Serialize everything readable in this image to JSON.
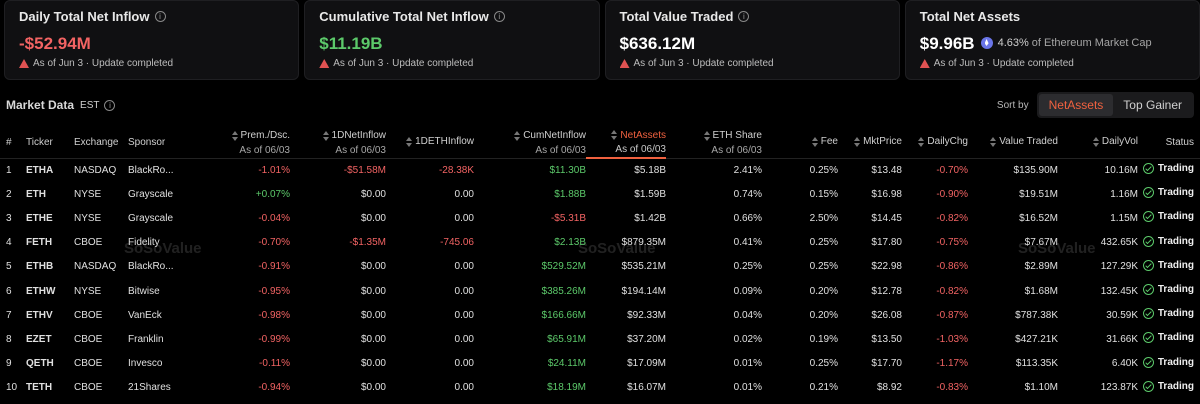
{
  "cards": [
    {
      "title": "Daily Total Net Inflow",
      "value": "-$52.94M",
      "tone": "neg",
      "status": "As of Jun 3 · Update completed"
    },
    {
      "title": "Cumulative Total Net Inflow",
      "value": "$11.19B",
      "tone": "pos",
      "status": "As of Jun 3 · Update completed"
    },
    {
      "title": "Total Value Traded",
      "value": "$636.12M",
      "tone": "neu",
      "status": "As of Jun 3 · Update completed"
    },
    {
      "title": "Total Net Assets",
      "value": "$9.96B",
      "tone": "neu",
      "extra_pct": "4.63%",
      "extra_text": "of Ethereum Market Cap",
      "status": "As of Jun 3 · Update completed"
    }
  ],
  "market": {
    "title": "Market Data",
    "timezone": "EST",
    "sort_label": "Sort by",
    "sort_options": [
      "NetAssets",
      "Top Gainer"
    ]
  },
  "watermark": "SoSoValue",
  "table": {
    "headers": {
      "num": "#",
      "ticker": "Ticker",
      "exchange": "Exchange",
      "sponsor": "Sponsor",
      "prem": "Prem./Dsc.",
      "prem_sub": "As of 06/03",
      "d1net": "1DNetInflow",
      "d1net_sub": "As of 06/03",
      "d1eth": "1DETHInflow",
      "cumnet": "CumNetInflow",
      "cumnet_sub": "As of 06/03",
      "netassets": "NetAssets",
      "netassets_sub": "As of 06/03",
      "ethshare": "ETH Share",
      "ethshare_sub": "As of 06/03",
      "fee": "Fee",
      "mktprice": "MktPrice",
      "dailychg": "DailyChg",
      "valtraded": "Value Traded",
      "dailyvol": "DailyVol",
      "status": "Status"
    },
    "rows": [
      {
        "num": "1",
        "ticker": "ETHA",
        "exchange": "NASDAQ",
        "sponsor": "BlackRo...",
        "prem": "-1.01%",
        "d1net": "-$51.58M",
        "d1eth": "-28.38K",
        "cumnet": "$11.30B",
        "netassets": "$5.18B",
        "ethshare": "2.41%",
        "fee": "0.25%",
        "fee2": "0.25%",
        "mktprice": "$13.48",
        "dailychg": "-0.70%",
        "valtraded": "$135.90M",
        "dailyvol": "10.16M",
        "status": "Trading"
      },
      {
        "num": "2",
        "ticker": "ETH",
        "exchange": "NYSE",
        "sponsor": "Grayscale",
        "prem": "+0.07%",
        "d1net": "$0.00",
        "d1eth": "0.00",
        "cumnet": "$1.88B",
        "netassets": "$1.59B",
        "ethshare": "0.74%",
        "fee": "0.15%",
        "fee2": "0.15%",
        "mktprice": "$16.98",
        "dailychg": "-0.90%",
        "valtraded": "$19.51M",
        "dailyvol": "1.16M",
        "status": "Trading"
      },
      {
        "num": "3",
        "ticker": "ETHE",
        "exchange": "NYSE",
        "sponsor": "Grayscale",
        "prem": "-0.04%",
        "d1net": "$0.00",
        "d1eth": "0.00",
        "cumnet": "-$5.31B",
        "netassets": "$1.42B",
        "ethshare": "0.66%",
        "fee": "2.50%",
        "fee2": "2.50%",
        "mktprice": "$14.45",
        "dailychg": "-0.82%",
        "valtraded": "$16.52M",
        "dailyvol": "1.15M",
        "status": "Trading"
      },
      {
        "num": "4",
        "ticker": "FETH",
        "exchange": "CBOE",
        "sponsor": "Fidelity",
        "prem": "-0.70%",
        "d1net": "-$1.35M",
        "d1eth": "-745.06",
        "cumnet": "$2.13B",
        "netassets": "$879.35M",
        "ethshare": "0.41%",
        "fee": "0.25%",
        "fee2": "0.25%",
        "mktprice": "$17.80",
        "dailychg": "-0.75%",
        "valtraded": "$7.67M",
        "dailyvol": "432.65K",
        "status": "Trading"
      },
      {
        "num": "5",
        "ticker": "ETHB",
        "exchange": "NASDAQ",
        "sponsor": "BlackRo...",
        "prem": "-0.91%",
        "d1net": "$0.00",
        "d1eth": "0.00",
        "cumnet": "$529.52M",
        "netassets": "$535.21M",
        "ethshare": "0.25%",
        "fee": "0.25%",
        "fee2": "0.25%",
        "mktprice": "$22.98",
        "dailychg": "-0.86%",
        "valtraded": "$2.89M",
        "dailyvol": "127.29K",
        "status": "Trading"
      },
      {
        "num": "6",
        "ticker": "ETHW",
        "exchange": "NYSE",
        "sponsor": "Bitwise",
        "prem": "-0.95%",
        "d1net": "$0.00",
        "d1eth": "0.00",
        "cumnet": "$385.26M",
        "netassets": "$194.14M",
        "ethshare": "0.09%",
        "fee": "0.20%",
        "fee2": "0.20%",
        "mktprice": "$12.78",
        "dailychg": "-0.82%",
        "valtraded": "$1.68M",
        "dailyvol": "132.45K",
        "status": "Trading"
      },
      {
        "num": "7",
        "ticker": "ETHV",
        "exchange": "CBOE",
        "sponsor": "VanEck",
        "prem": "-0.98%",
        "d1net": "$0.00",
        "d1eth": "0.00",
        "cumnet": "$166.66M",
        "netassets": "$92.33M",
        "ethshare": "0.04%",
        "fee": "0.20%",
        "fee2": "0.20%",
        "mktprice": "$26.08",
        "dailychg": "-0.87%",
        "valtraded": "$787.38K",
        "dailyvol": "30.59K",
        "status": "Trading"
      },
      {
        "num": "8",
        "ticker": "EZET",
        "exchange": "CBOE",
        "sponsor": "Franklin",
        "prem": "-0.99%",
        "d1net": "$0.00",
        "d1eth": "0.00",
        "cumnet": "$65.91M",
        "netassets": "$37.20M",
        "ethshare": "0.02%",
        "fee": "0.19%",
        "fee2": "0.19%",
        "mktprice": "$13.50",
        "dailychg": "-1.03%",
        "valtraded": "$427.21K",
        "dailyvol": "31.66K",
        "status": "Trading"
      },
      {
        "num": "9",
        "ticker": "QETH",
        "exchange": "CBOE",
        "sponsor": "Invesco",
        "prem": "-0.11%",
        "d1net": "$0.00",
        "d1eth": "0.00",
        "cumnet": "$24.11M",
        "netassets": "$17.09M",
        "ethshare": "0.01%",
        "fee": "0.25%",
        "fee2": "0.25%",
        "mktprice": "$17.70",
        "dailychg": "-1.17%",
        "valtraded": "$113.35K",
        "dailyvol": "6.40K",
        "status": "Trading"
      },
      {
        "num": "10",
        "ticker": "TETH",
        "exchange": "CBOE",
        "sponsor": "21Shares",
        "prem": "-0.94%",
        "d1net": "$0.00",
        "d1eth": "0.00",
        "cumnet": "$18.19M",
        "netassets": "$16.07M",
        "ethshare": "0.01%",
        "fee": "0.21%",
        "fee2": "0.21%",
        "mktprice": "$8.92",
        "dailychg": "-0.83%",
        "valtraded": "$1.10M",
        "dailyvol": "123.87K",
        "status": "Trading"
      }
    ]
  }
}
